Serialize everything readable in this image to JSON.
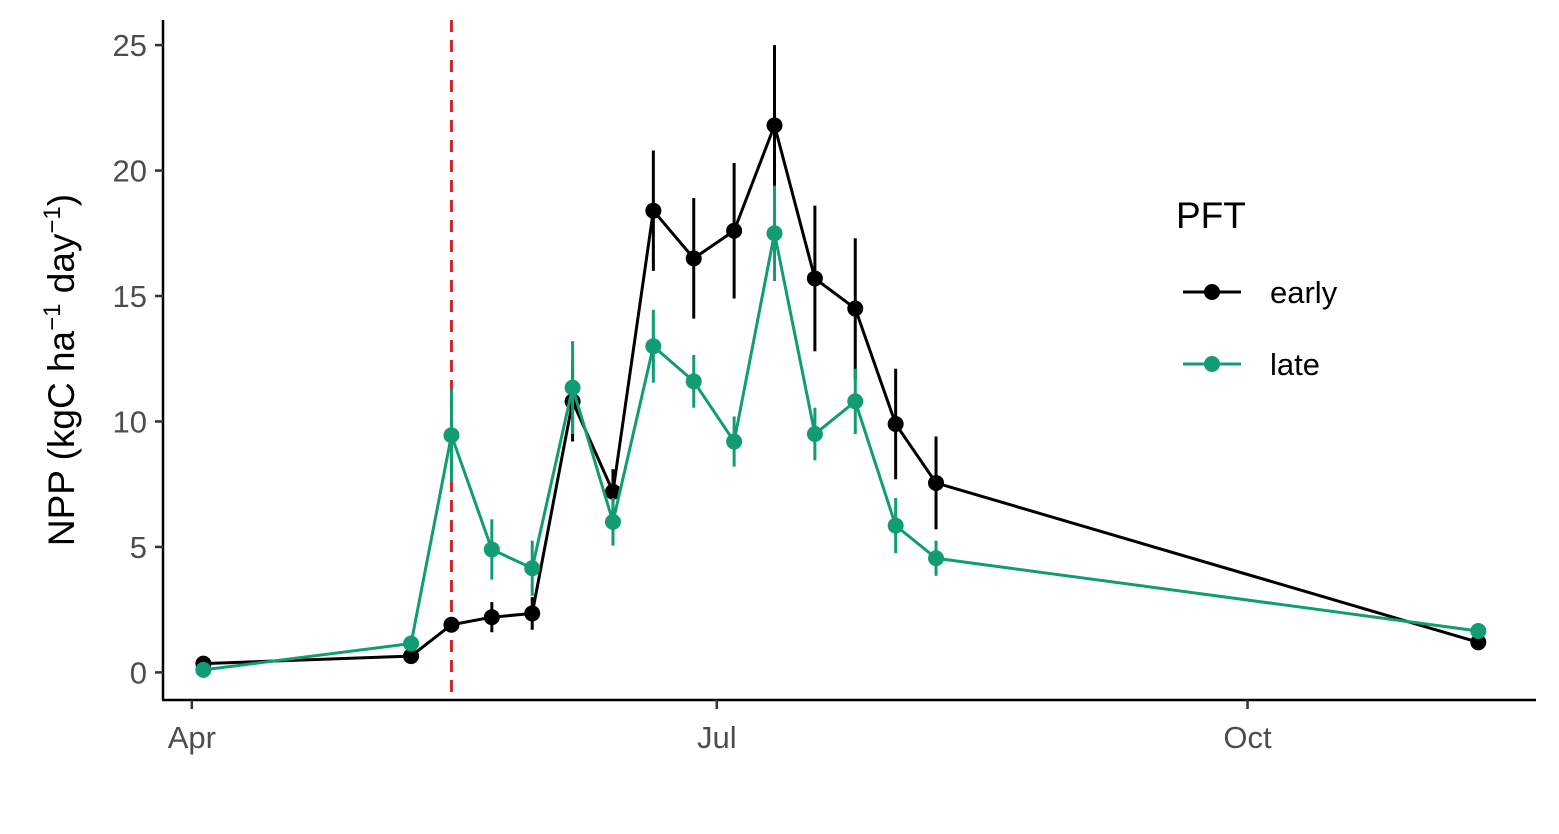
{
  "chart_data": {
    "type": "line",
    "ylabel": {
      "prefix": "NPP (kgC ha",
      "sup1": "−1",
      "middle": " day",
      "sup2": "−1",
      "suffix": ")"
    },
    "xlabel": "",
    "x_ticks": [
      {
        "label": "Apr",
        "date": "2019-04-01"
      },
      {
        "label": "Jul",
        "date": "2019-07-01"
      },
      {
        "label": "Oct",
        "date": "2019-10-01"
      }
    ],
    "y_ticks": [
      0,
      5,
      10,
      15,
      20,
      25
    ],
    "xlim": [
      "2019-03-27",
      "2019-11-20"
    ],
    "ylim": [
      -1.1,
      26
    ],
    "legend": {
      "title": "PFT",
      "position": "right"
    },
    "reference_line": {
      "date": "2019-05-16",
      "color": "#cc2a2a",
      "style": "dashed"
    },
    "series": [
      {
        "name": "early",
        "color": "#000000",
        "points": [
          {
            "x": "2019-04-03",
            "y": 0.35,
            "err": 0
          },
          {
            "x": "2019-05-09",
            "y": 0.65,
            "err": 0
          },
          {
            "x": "2019-05-16",
            "y": 1.9,
            "err": 0
          },
          {
            "x": "2019-05-23",
            "y": 2.2,
            "err": 0.6
          },
          {
            "x": "2019-05-30",
            "y": 2.35,
            "err": 0.65
          },
          {
            "x": "2019-06-06",
            "y": 10.8,
            "err": 1.6
          },
          {
            "x": "2019-06-13",
            "y": 7.2,
            "err": 0.9
          },
          {
            "x": "2019-06-20",
            "y": 18.4,
            "err": 2.4
          },
          {
            "x": "2019-06-27",
            "y": 16.5,
            "err": 2.4
          },
          {
            "x": "2019-07-04",
            "y": 17.6,
            "err": 2.7
          },
          {
            "x": "2019-07-11",
            "y": 21.8,
            "err": 3.2
          },
          {
            "x": "2019-07-18",
            "y": 15.7,
            "err": 2.9
          },
          {
            "x": "2019-07-25",
            "y": 14.5,
            "err": 2.8
          },
          {
            "x": "2019-08-01",
            "y": 9.9,
            "err": 2.2
          },
          {
            "x": "2019-08-08",
            "y": 7.55,
            "err": 1.85
          },
          {
            "x": "2019-11-10",
            "y": 1.2,
            "err": 0
          }
        ]
      },
      {
        "name": "late",
        "color": "#119c74",
        "points": [
          {
            "x": "2019-04-03",
            "y": 0.1,
            "err": 0
          },
          {
            "x": "2019-05-09",
            "y": 1.15,
            "err": 0
          },
          {
            "x": "2019-05-16",
            "y": 9.45,
            "err": 1.85
          },
          {
            "x": "2019-05-23",
            "y": 4.9,
            "err": 1.2
          },
          {
            "x": "2019-05-30",
            "y": 4.15,
            "err": 1.1
          },
          {
            "x": "2019-06-06",
            "y": 11.35,
            "err": 1.85
          },
          {
            "x": "2019-06-13",
            "y": 6.0,
            "err": 0.95
          },
          {
            "x": "2019-06-20",
            "y": 13.0,
            "err": 1.45
          },
          {
            "x": "2019-06-27",
            "y": 11.6,
            "err": 1.05
          },
          {
            "x": "2019-07-04",
            "y": 9.2,
            "err": 1.0
          },
          {
            "x": "2019-07-11",
            "y": 17.5,
            "err": 1.9
          },
          {
            "x": "2019-07-18",
            "y": 9.5,
            "err": 1.05
          },
          {
            "x": "2019-07-25",
            "y": 10.8,
            "err": 1.3
          },
          {
            "x": "2019-08-01",
            "y": 5.85,
            "err": 1.1
          },
          {
            "x": "2019-08-08",
            "y": 4.55,
            "err": 0.7
          },
          {
            "x": "2019-11-10",
            "y": 1.65,
            "err": 0
          }
        ]
      }
    ]
  }
}
